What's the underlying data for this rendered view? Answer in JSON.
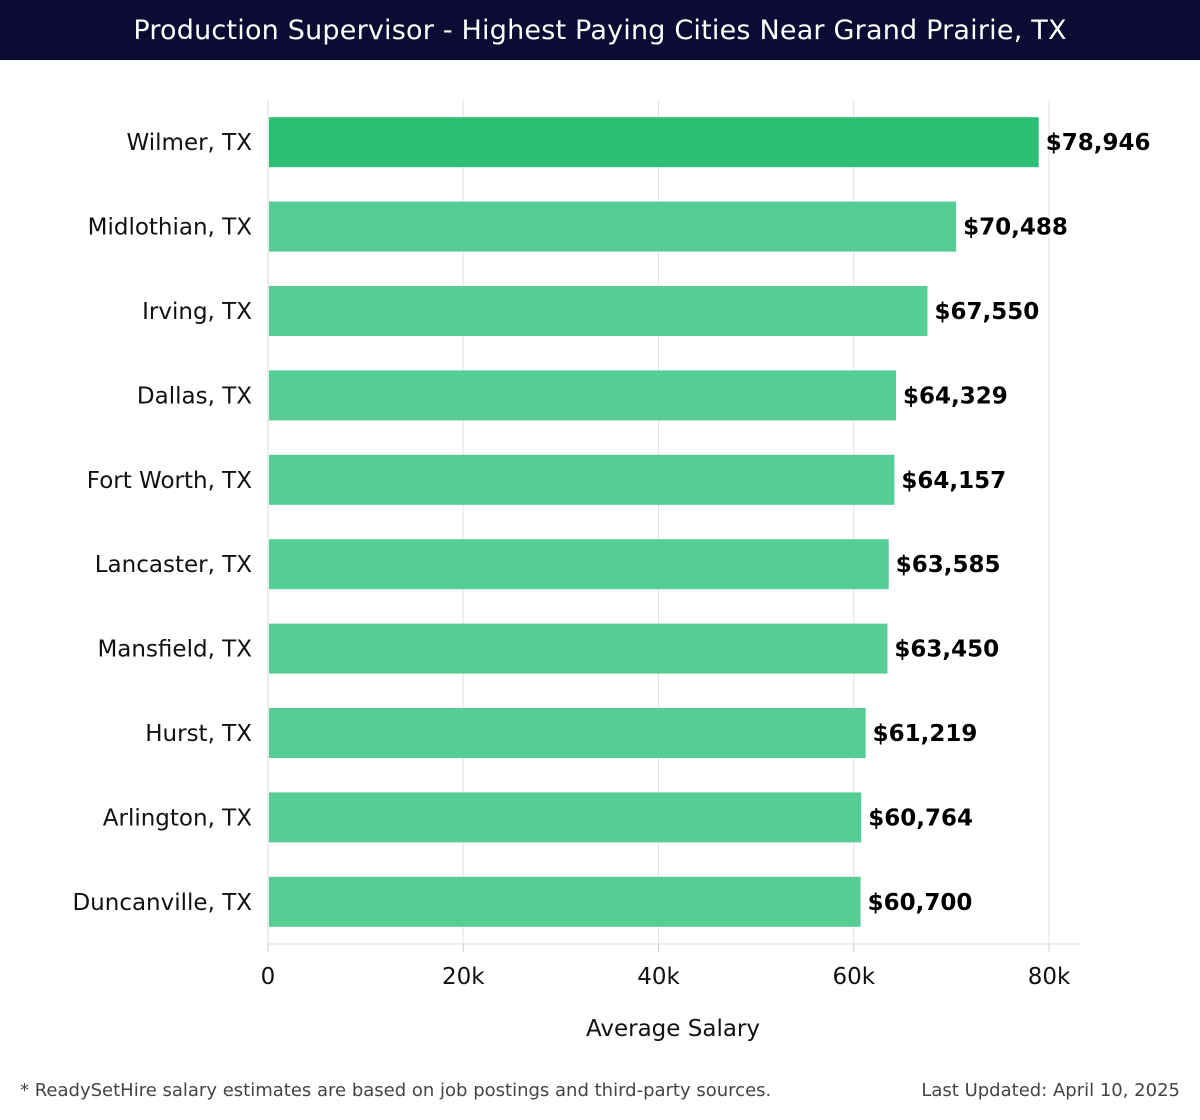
{
  "header": {
    "title": "Production Supervisor - Highest Paying Cities Near Grand Prairie, TX"
  },
  "chart_data": {
    "type": "bar",
    "orientation": "horizontal",
    "title": "Production Supervisor - Highest Paying Cities Near Grand Prairie, TX",
    "categories": [
      "Wilmer, TX",
      "Midlothian, TX",
      "Irving, TX",
      "Dallas, TX",
      "Fort Worth, TX",
      "Lancaster, TX",
      "Mansfield, TX",
      "Hurst, TX",
      "Arlington, TX",
      "Duncanville, TX"
    ],
    "values": [
      78946,
      70488,
      67550,
      64329,
      64157,
      63585,
      63450,
      61219,
      60764,
      60700
    ],
    "value_labels": [
      "$78,946",
      "$70,488",
      "$67,550",
      "$64,329",
      "$64,157",
      "$63,585",
      "$63,450",
      "$61,219",
      "$60,764",
      "$60,700"
    ],
    "xlabel": "Average Salary",
    "ylabel": "",
    "xlim": [
      0,
      80000
    ],
    "xticks": [
      0,
      20000,
      40000,
      60000,
      80000
    ],
    "xtick_labels": [
      "0",
      "20k",
      "40k",
      "60k",
      "80k"
    ],
    "grid": true,
    "colors": {
      "top": "#2dbe76",
      "rest": "#57cd96"
    }
  },
  "footer": {
    "note": "* ReadySetHire salary estimates are based on job postings and third-party sources.",
    "updated": "Last Updated: April 10, 2025"
  }
}
